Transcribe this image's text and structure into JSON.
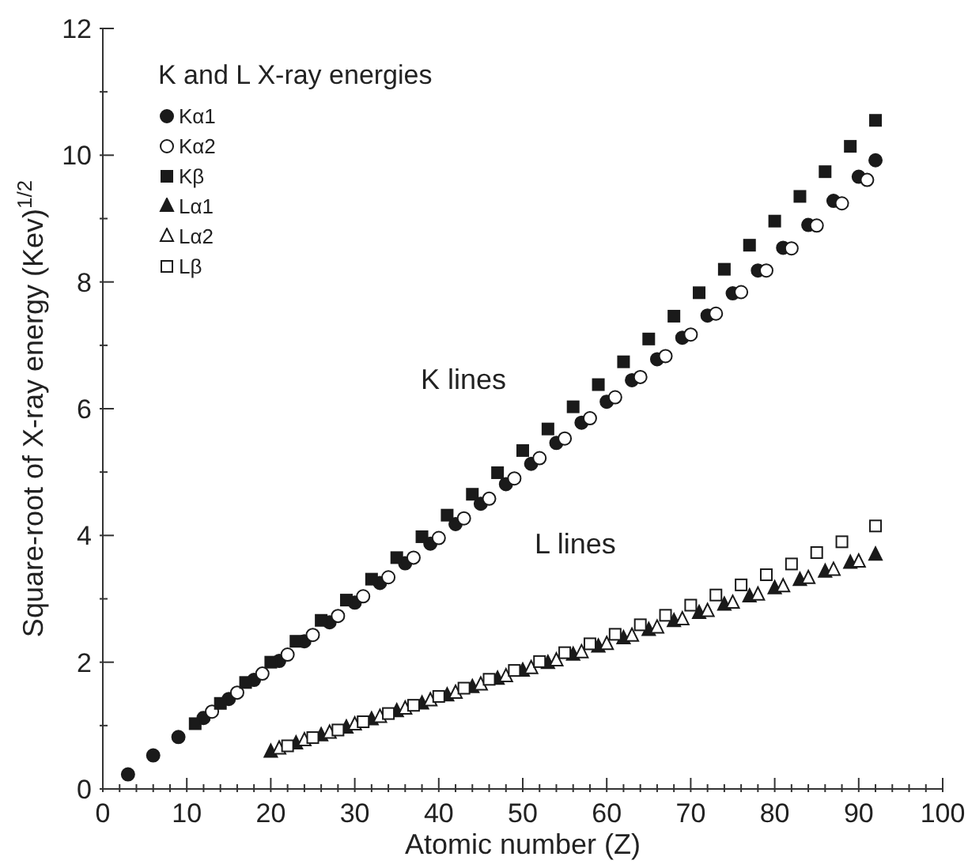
{
  "chart_data": {
    "type": "scatter",
    "legend_title": "K and L X-ray energies",
    "xlabel": "Atomic number (Z)",
    "ylabel": "Square-root of X-ray energy (Kev)$^{1/2}$",
    "annotations": [
      "K lines",
      "L lines"
    ],
    "legend": "top left",
    "xlim": [
      0,
      100
    ],
    "ylim": [
      0,
      12
    ],
    "xticks": [
      0,
      {
        "value": 2,
        "label": null
      },
      {
        "value": 4,
        "label": null
      },
      {
        "value": 6,
        "label": null
      },
      {
        "value": 8,
        "label": null
      },
      10,
      {
        "value": 12,
        "label": null
      },
      {
        "value": 14,
        "label": null
      },
      {
        "value": 16,
        "label": null
      },
      {
        "value": 18,
        "label": null
      },
      20,
      {
        "value": 22,
        "label": null
      },
      {
        "value": 24,
        "label": null
      },
      {
        "value": 26,
        "label": null
      },
      {
        "value": 28,
        "label": null
      },
      30,
      {
        "value": 32,
        "label": null
      },
      {
        "value": 34,
        "label": null
      },
      {
        "value": 36,
        "label": null
      },
      {
        "value": 38,
        "label": null
      },
      40,
      {
        "value": 42,
        "label": null
      },
      {
        "value": 44,
        "label": null
      },
      {
        "value": 46,
        "label": null
      },
      {
        "value": 48,
        "label": null
      },
      50,
      {
        "value": 52,
        "label": null
      },
      {
        "value": 54,
        "label": null
      },
      {
        "value": 56,
        "label": null
      },
      {
        "value": 58,
        "label": null
      },
      60,
      {
        "value": 62,
        "label": null
      },
      {
        "value": 64,
        "label": null
      },
      {
        "value": 66,
        "label": null
      },
      {
        "value": 68,
        "label": null
      },
      70,
      {
        "value": 72,
        "label": null
      },
      {
        "value": 74,
        "label": null
      },
      {
        "value": 76,
        "label": null
      },
      {
        "value": 78,
        "label": null
      },
      80,
      {
        "value": 82,
        "label": null
      },
      {
        "value": 84,
        "label": null
      },
      {
        "value": 86,
        "label": null
      },
      {
        "value": 88,
        "label": null
      },
      90,
      {
        "value": 92,
        "label": null
      },
      {
        "value": 94,
        "label": null
      },
      {
        "value": 96,
        "label": null
      },
      {
        "value": 98,
        "label": null
      },
      100
    ],
    "yticks": [
      0,
      {
        "value": 1,
        "label": null
      },
      2,
      {
        "value": 3,
        "label": null
      },
      4,
      {
        "value": 5,
        "label": null
      },
      6,
      {
        "value": 7,
        "label": null
      },
      8,
      {
        "value": 9,
        "label": null
      },
      10,
      {
        "value": 11,
        "label": null
      },
      12
    ],
    "series": [
      {
        "name": "Kα1",
        "color": "#1a1a1a",
        "marker": "circle",
        "x": [
          3,
          6,
          9,
          12,
          15,
          18,
          21,
          24,
          27,
          30,
          33,
          36,
          39,
          42,
          45,
          48,
          51,
          54,
          57,
          60,
          63,
          66,
          69,
          72,
          75,
          78,
          81,
          84,
          87,
          90,
          92
        ],
        "values": [
          0.23,
          0.53,
          0.82,
          1.12,
          1.42,
          1.72,
          2.02,
          2.33,
          2.63,
          2.94,
          3.25,
          3.56,
          3.87,
          4.18,
          4.5,
          4.81,
          5.13,
          5.46,
          5.78,
          6.11,
          6.45,
          6.78,
          7.12,
          7.47,
          7.82,
          8.18,
          8.54,
          8.9,
          9.28,
          9.66,
          9.92
        ]
      },
      {
        "name": "Kα2",
        "color": "#ffffff",
        "marker": "circle",
        "x": [
          13,
          16,
          19,
          22,
          25,
          28,
          31,
          34,
          37,
          40,
          43,
          46,
          49,
          52,
          55,
          58,
          61,
          64,
          67,
          70,
          73,
          76,
          79,
          82,
          85,
          88,
          91
        ],
        "values": [
          1.22,
          1.52,
          1.82,
          2.12,
          2.43,
          2.73,
          3.04,
          3.34,
          3.65,
          3.96,
          4.27,
          4.58,
          4.9,
          5.22,
          5.53,
          5.85,
          6.18,
          6.5,
          6.83,
          7.17,
          7.5,
          7.84,
          8.18,
          8.53,
          8.89,
          9.24,
          9.61
        ]
      },
      {
        "name": "Kβ",
        "color": "#1a1a1a",
        "marker": "square",
        "x": [
          11,
          14,
          17,
          20,
          23,
          26,
          29,
          32,
          35,
          38,
          41,
          44,
          47,
          50,
          53,
          56,
          59,
          62,
          65,
          68,
          71,
          74,
          77,
          80,
          83,
          86,
          89,
          92
        ],
        "values": [
          1.03,
          1.35,
          1.68,
          2.0,
          2.33,
          2.66,
          2.98,
          3.31,
          3.65,
          3.98,
          4.32,
          4.65,
          4.99,
          5.34,
          5.68,
          6.03,
          6.38,
          6.74,
          7.1,
          7.46,
          7.83,
          8.2,
          8.58,
          8.96,
          9.35,
          9.74,
          10.14,
          10.55
        ]
      },
      {
        "name": "Lα1",
        "color": "#1a1a1a",
        "marker": "triangle",
        "x": [
          20,
          23,
          26,
          29,
          32,
          35,
          38,
          41,
          44,
          47,
          50,
          53,
          56,
          59,
          62,
          65,
          68,
          71,
          74,
          77,
          80,
          83,
          86,
          89,
          92
        ],
        "values": [
          0.58,
          0.71,
          0.84,
          0.96,
          1.09,
          1.22,
          1.34,
          1.47,
          1.6,
          1.73,
          1.86,
          1.98,
          2.11,
          2.24,
          2.37,
          2.5,
          2.64,
          2.77,
          2.9,
          3.03,
          3.16,
          3.29,
          3.42,
          3.56,
          3.69
        ]
      },
      {
        "name": "Lα2",
        "color": "#ffffff",
        "marker": "triangle",
        "x": [
          21,
          24,
          27,
          30,
          33,
          36,
          39,
          42,
          45,
          48,
          51,
          54,
          57,
          60,
          63,
          66,
          69,
          72,
          75,
          78,
          81,
          84,
          87,
          90
        ],
        "values": [
          0.63,
          0.76,
          0.88,
          1.01,
          1.13,
          1.26,
          1.39,
          1.51,
          1.64,
          1.77,
          1.9,
          2.02,
          2.15,
          2.28,
          2.41,
          2.54,
          2.67,
          2.8,
          2.93,
          3.06,
          3.19,
          3.32,
          3.45,
          3.58
        ]
      },
      {
        "name": "Lβ",
        "color": "#ffffff",
        "marker": "square",
        "x": [
          22,
          25,
          28,
          31,
          34,
          37,
          40,
          43,
          46,
          49,
          52,
          55,
          58,
          61,
          64,
          67,
          70,
          73,
          76,
          79,
          82,
          85,
          88,
          92
        ],
        "values": [
          0.68,
          0.81,
          0.93,
          1.06,
          1.19,
          1.32,
          1.46,
          1.59,
          1.73,
          1.87,
          2.01,
          2.15,
          2.29,
          2.44,
          2.59,
          2.74,
          2.9,
          3.06,
          3.22,
          3.38,
          3.55,
          3.73,
          3.9,
          4.15
        ]
      }
    ]
  }
}
